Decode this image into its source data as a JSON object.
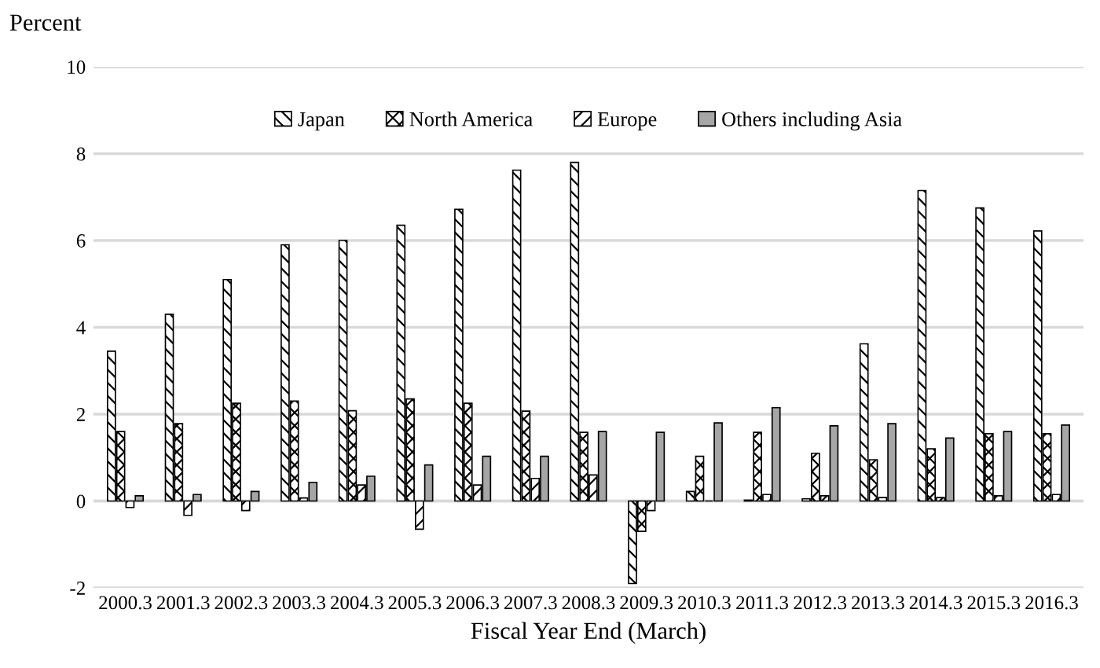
{
  "chart_data": {
    "type": "bar",
    "ylabel": "Percent",
    "xlabel": "Fiscal Year End (March)",
    "categories": [
      "2000.3",
      "2001.3",
      "2002.3",
      "2003.3",
      "2004.3",
      "2005.3",
      "2006.3",
      "2007.3",
      "2008.3",
      "2009.3",
      "2010.3",
      "2011.3",
      "2012.3",
      "2013.3",
      "2014.3",
      "2015.3",
      "2016.3"
    ],
    "series": [
      {
        "name": "Japan",
        "color": "#000000",
        "values": [
          3.45,
          4.3,
          5.1,
          5.9,
          6.0,
          6.35,
          6.72,
          7.62,
          7.8,
          -1.9,
          0.22,
          0.02,
          0.05,
          3.62,
          7.15,
          6.75,
          6.22
        ]
      },
      {
        "name": "North America",
        "color": "#000000",
        "values": [
          1.6,
          1.78,
          2.25,
          2.3,
          2.08,
          2.35,
          2.25,
          2.07,
          1.58,
          -0.7,
          1.03,
          1.58,
          1.1,
          0.95,
          1.2,
          1.55,
          1.55
        ]
      },
      {
        "name": "Europe",
        "color": "#000000",
        "values": [
          -0.15,
          -0.33,
          -0.22,
          0.07,
          0.37,
          -0.65,
          0.37,
          0.52,
          0.6,
          -0.22,
          0.0,
          0.15,
          0.12,
          0.08,
          0.08,
          0.12,
          0.15
        ]
      },
      {
        "name": "Others including Asia",
        "color": "#a6a6a6",
        "values": [
          0.12,
          0.15,
          0.22,
          0.43,
          0.57,
          0.83,
          1.03,
          1.03,
          1.6,
          1.58,
          1.8,
          2.15,
          1.73,
          1.78,
          1.45,
          1.6,
          1.75
        ]
      }
    ],
    "ylim": [
      -2,
      10
    ],
    "yticks": [
      -2,
      0,
      2,
      4,
      6,
      8,
      10
    ],
    "grid": "y",
    "legend": "top"
  }
}
